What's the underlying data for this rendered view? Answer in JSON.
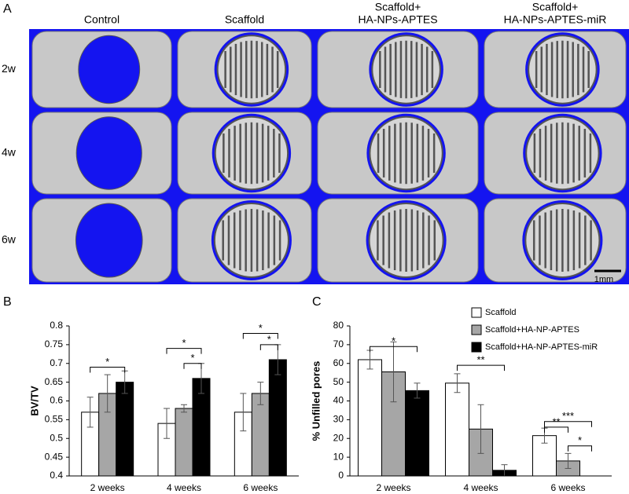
{
  "panel_a": {
    "label": "A",
    "columns": [
      [
        "Control"
      ],
      [
        "Scaffold"
      ],
      [
        "Scaffold+",
        "HA-NPs-APTES"
      ],
      [
        "Scaffold+",
        "HA-NPs-APTES-miR"
      ]
    ],
    "rows": [
      "2w",
      "4w",
      "6w"
    ],
    "scale_bar": "1mm"
  },
  "chart_data": [
    {
      "type": "bar",
      "panel_label": "B",
      "y_label": "BV/TV",
      "categories": [
        "2 weeks",
        "4 weeks",
        "6 weeks"
      ],
      "series": [
        {
          "color": "#ffffff",
          "values": [
            0.57,
            0.54,
            0.57
          ],
          "errors": [
            0.04,
            0.04,
            0.05
          ]
        },
        {
          "color": "#a6a6a6",
          "values": [
            0.62,
            0.58,
            0.62
          ],
          "errors": [
            0.05,
            0.01,
            0.03
          ]
        },
        {
          "color": "#000000",
          "values": [
            0.65,
            0.66,
            0.71
          ],
          "errors": [
            0.03,
            0.04,
            0.04
          ]
        }
      ],
      "ylim": [
        0.4,
        0.8
      ],
      "yticks": [
        0.4,
        0.45,
        0.5,
        0.55,
        0.6,
        0.65,
        0.7,
        0.75,
        0.8
      ],
      "annotations": [
        {
          "text": "*",
          "group": 0,
          "from": 0,
          "to": 2,
          "y": 0.69
        },
        {
          "text": "*",
          "group": 1,
          "from": 0,
          "to": 2,
          "y": 0.74
        },
        {
          "text": "*",
          "group": 1,
          "from": 1,
          "to": 2,
          "y": 0.7
        },
        {
          "text": "*",
          "group": 2,
          "from": 0,
          "to": 2,
          "y": 0.78
        },
        {
          "text": "*",
          "group": 2,
          "from": 1,
          "to": 2,
          "y": 0.75
        }
      ]
    },
    {
      "type": "bar",
      "panel_label": "C",
      "y_label": "% Unfilled pores",
      "categories": [
        "2 weeks",
        "4 weeks",
        "6 weeks"
      ],
      "series": [
        {
          "name": "Scaffold",
          "color": "#ffffff",
          "values": [
            62,
            49.5,
            21.5
          ],
          "errors": [
            5,
            5,
            4
          ]
        },
        {
          "name": "Scaffold+HA-NP-APTES",
          "color": "#a6a6a6",
          "values": [
            55.5,
            25,
            8
          ],
          "errors": [
            16,
            13,
            4
          ]
        },
        {
          "name": "Scaffold+HA-NP-APTES-miR",
          "color": "#000000",
          "values": [
            45.5,
            3,
            0
          ],
          "errors": [
            4,
            3,
            0
          ]
        }
      ],
      "ylim": [
        0,
        80
      ],
      "yticks": [
        0,
        10,
        20,
        30,
        40,
        50,
        60,
        70,
        80
      ],
      "legend": "top-right",
      "annotations": [
        {
          "text": "*",
          "group": 0,
          "from": 0,
          "to": 2,
          "y": 69
        },
        {
          "text": "**",
          "group": 1,
          "from": 0,
          "to": 2,
          "y": 59
        },
        {
          "text": "***",
          "group": 2,
          "from": 0,
          "to": 2,
          "y": 29
        },
        {
          "text": "**",
          "group": 2,
          "from": 0,
          "to": 1,
          "y": 26
        },
        {
          "text": "*",
          "group": 2,
          "from": 1,
          "to": 2,
          "y": 16
        }
      ]
    }
  ]
}
